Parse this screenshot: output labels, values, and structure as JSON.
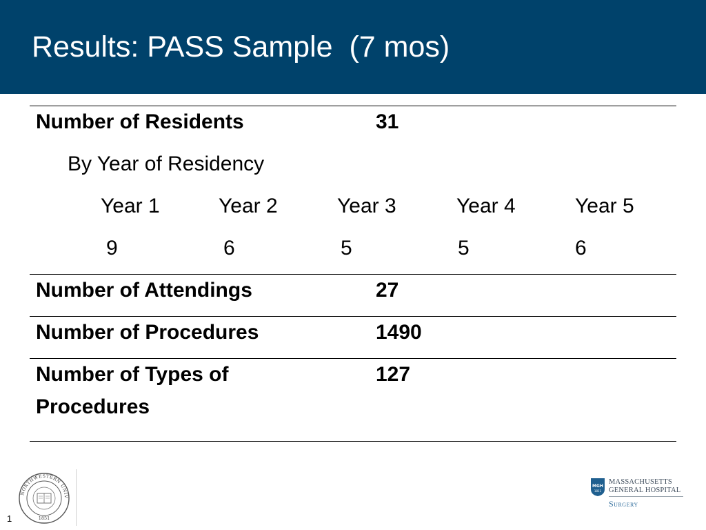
{
  "slide": {
    "title": "Results: PASS Sample  (7 mos)",
    "slide_number": "1"
  },
  "table": {
    "residents": {
      "label": "Number of Residents",
      "value": "31",
      "by_year_label": "By Year of Residency",
      "years": [
        {
          "label": "Year 1",
          "count": "9"
        },
        {
          "label": "Year 2",
          "count": "6"
        },
        {
          "label": "Year 3",
          "count": "5"
        },
        {
          "label": "Year 4",
          "count": "5"
        },
        {
          "label": "Year 5",
          "count": "6"
        }
      ]
    },
    "attendings": {
      "label": "Number of Attendings",
      "value": "27"
    },
    "procedures": {
      "label": "Number of Procedures",
      "value": "1490"
    },
    "procedure_types": {
      "label_line1": "Number of Types of",
      "label_line2": "Procedures",
      "value": "127"
    }
  },
  "logos": {
    "northwestern": {
      "text": "NORTHWESTERN UNIVERSITY",
      "year": "1851",
      "icon": "university-seal-icon"
    },
    "mgh": {
      "line1": "MASSACHUSETTS",
      "line2": "GENERAL HOSPITAL",
      "dept": "Surgery",
      "shield_text": "MGH",
      "shield_year": "1811",
      "color": "#1f5f8f"
    }
  },
  "colors": {
    "header_bg": "#00426b",
    "header_text": "#ffffff"
  }
}
